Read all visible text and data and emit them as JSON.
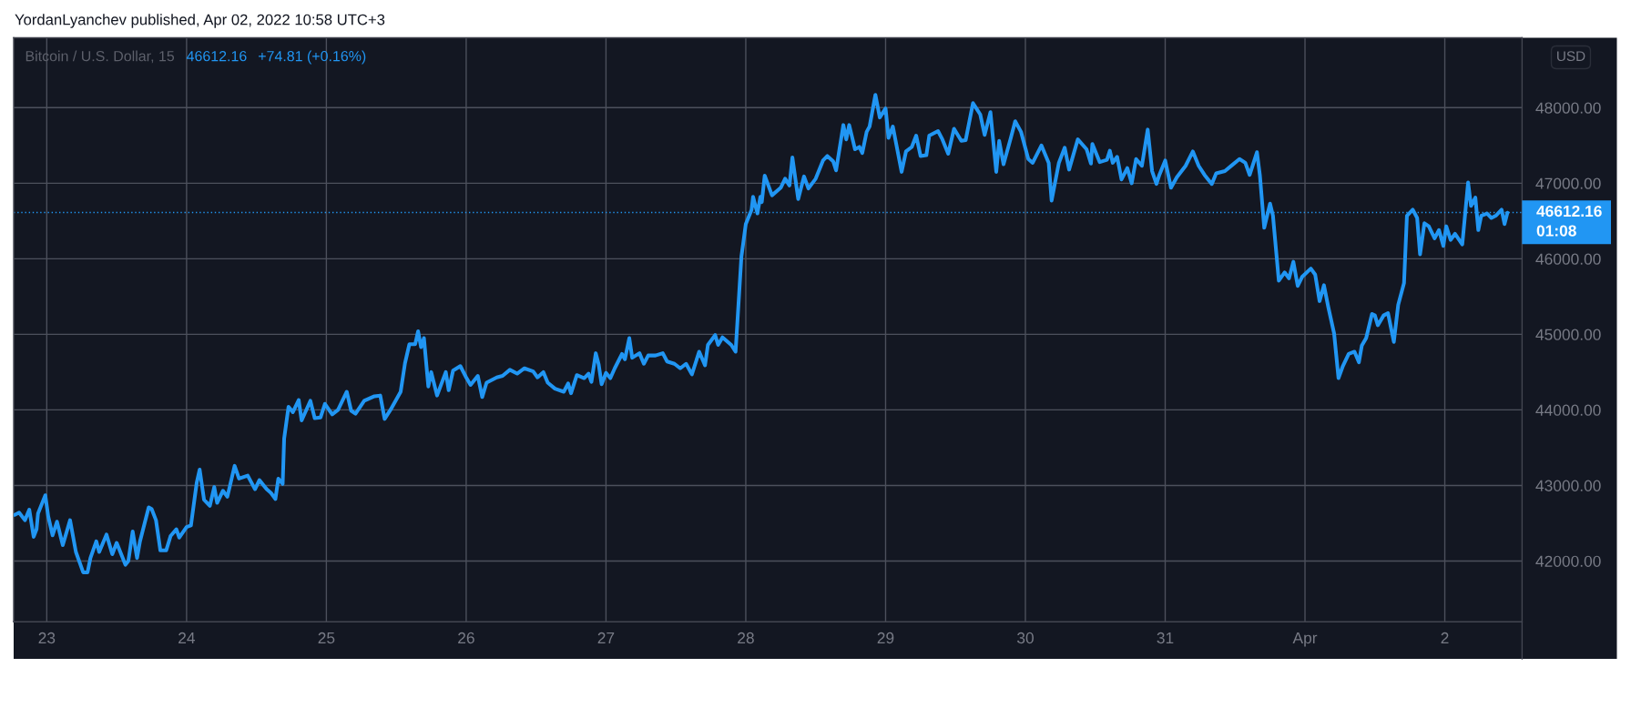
{
  "chart_data": {
    "type": "line",
    "title": "YordanLyanchev published, Apr 02, 2022 10:58 UTC+3",
    "subtitle": "Bitcoin / U.S. Dollar, 15",
    "annotations": [
      "46612.16",
      "+74.81 (+0.16%)",
      "01:08",
      "USD"
    ],
    "x": [
      "2022-03-22T18:30",
      "2022-03-22T19:15",
      "2022-03-22T20:15",
      "2022-03-22T21:00",
      "2022-03-22T21:45",
      "2022-03-22T22:15",
      "2022-03-22T22:30",
      "2022-03-22T23:45",
      "2022-03-23T00:15",
      "2022-03-23T01:00",
      "2022-03-23T01:45",
      "2022-03-23T02:45",
      "2022-03-23T04:00",
      "2022-03-23T05:00",
      "2022-03-23T06:15",
      "2022-03-23T07:00",
      "2022-03-23T07:30",
      "2022-03-23T08:30",
      "2022-03-23T09:00",
      "2022-03-23T10:15",
      "2022-03-23T11:15",
      "2022-03-23T12:00",
      "2022-03-23T13:30",
      "2022-03-23T14:00",
      "2022-03-23T14:45",
      "2022-03-23T15:30",
      "2022-03-23T16:00",
      "2022-03-23T17:30",
      "2022-03-23T18:00",
      "2022-03-23T18:45",
      "2022-03-23T19:30",
      "2022-03-23T20:30",
      "2022-03-23T21:15",
      "2022-03-23T22:15",
      "2022-03-23T22:45",
      "2022-03-24T00:00",
      "2022-03-24T00:45",
      "2022-03-24T01:45",
      "2022-03-24T02:15",
      "2022-03-24T03:00",
      "2022-03-24T04:00",
      "2022-03-24T04:45",
      "2022-03-24T05:15",
      "2022-03-24T06:15",
      "2022-03-24T07:00",
      "2022-03-24T08:15",
      "2022-03-24T09:00",
      "2022-03-24T10:30",
      "2022-03-24T11:45",
      "2022-03-24T12:30",
      "2022-03-24T13:45",
      "2022-03-24T14:30",
      "2022-03-24T15:15",
      "2022-03-24T15:45",
      "2022-03-24T16:30",
      "2022-03-24T16:45",
      "2022-03-24T17:30",
      "2022-03-24T18:15",
      "2022-03-24T19:15",
      "2022-03-24T19:45",
      "2022-03-24T21:15",
      "2022-03-24T22:00",
      "2022-03-24T23:00",
      "2022-03-24T23:45",
      "2022-03-25T01:00",
      "2022-03-25T02:00",
      "2022-03-25T03:30",
      "2022-03-25T04:15",
      "2022-03-25T05:00",
      "2022-03-25T06:30",
      "2022-03-25T08:15",
      "2022-03-25T09:15",
      "2022-03-25T10:00",
      "2022-03-25T11:00",
      "2022-03-25T12:15",
      "2022-03-25T12:45",
      "2022-03-25T13:30",
      "2022-03-25T14:15",
      "2022-03-25T15:15",
      "2022-03-25T15:45",
      "2022-03-25T16:15",
      "2022-03-25T16:45",
      "2022-03-25T17:30",
      "2022-03-25T18:00",
      "2022-03-25T19:00",
      "2022-03-25T20:30",
      "2022-03-25T21:00",
      "2022-03-25T21:45",
      "2022-03-25T23:00",
      "2022-03-26T00:00",
      "2022-03-26T00:45",
      "2022-03-26T02:00",
      "2022-03-26T02:45",
      "2022-03-26T03:30",
      "2022-03-26T05:15",
      "2022-03-26T06:15",
      "2022-03-26T07:30",
      "2022-03-26T08:45",
      "2022-03-26T10:00",
      "2022-03-26T11:30",
      "2022-03-26T12:15",
      "2022-03-26T13:15",
      "2022-03-26T14:00",
      "2022-03-26T15:15",
      "2022-03-26T16:45",
      "2022-03-26T17:30",
      "2022-03-26T18:00",
      "2022-03-26T19:00",
      "2022-03-26T20:15",
      "2022-03-26T21:00",
      "2022-03-26T21:30",
      "2022-03-26T22:15",
      "2022-03-26T22:45",
      "2022-03-26T23:15",
      "2022-03-27T00:00",
      "2022-03-27T00:45",
      "2022-03-27T01:30",
      "2022-03-27T02:45",
      "2022-03-27T03:15",
      "2022-03-27T04:00",
      "2022-03-27T04:30",
      "2022-03-27T05:45",
      "2022-03-27T06:30",
      "2022-03-27T07:15",
      "2022-03-27T08:30",
      "2022-03-27T09:45",
      "2022-03-27T10:30",
      "2022-03-27T11:45",
      "2022-03-27T12:45",
      "2022-03-27T13:45",
      "2022-03-27T14:45",
      "2022-03-27T16:00",
      "2022-03-27T17:00",
      "2022-03-27T17:30",
      "2022-03-27T18:45",
      "2022-03-27T19:15",
      "2022-03-27T20:00",
      "2022-03-27T21:30",
      "2022-03-27T22:15",
      "2022-03-27T23:15",
      "2022-03-27T23:30",
      "2022-03-28T00:00",
      "2022-03-28T01:00",
      "2022-03-28T01:15",
      "2022-03-28T02:00",
      "2022-03-28T02:30",
      "2022-03-28T02:45",
      "2022-03-28T03:15",
      "2022-03-28T04:30",
      "2022-03-28T06:00",
      "2022-03-28T06:45",
      "2022-03-28T07:30",
      "2022-03-28T08:00",
      "2022-03-28T09:00",
      "2022-03-28T10:00",
      "2022-03-28T10:45",
      "2022-03-28T12:00",
      "2022-03-28T13:15",
      "2022-03-28T14:00",
      "2022-03-28T15:00",
      "2022-03-28T15:30",
      "2022-03-28T16:45",
      "2022-03-28T17:15",
      "2022-03-28T17:45",
      "2022-03-28T18:45",
      "2022-03-28T19:30",
      "2022-03-28T20:00",
      "2022-03-28T20:45",
      "2022-03-28T21:15",
      "2022-03-28T22:15",
      "2022-03-28T23:00",
      "2022-03-29T00:00",
      "2022-03-29T00:30",
      "2022-03-29T01:15",
      "2022-03-29T02:45",
      "2022-03-29T03:30",
      "2022-03-29T04:30",
      "2022-03-29T05:15",
      "2022-03-29T06:00",
      "2022-03-29T07:00",
      "2022-03-29T07:30",
      "2022-03-29T09:00",
      "2022-03-29T09:45",
      "2022-03-29T10:45",
      "2022-03-29T11:45",
      "2022-03-29T13:00",
      "2022-03-29T13:45",
      "2022-03-29T15:00",
      "2022-03-29T16:15",
      "2022-03-29T17:00",
      "2022-03-29T18:00",
      "2022-03-29T19:00",
      "2022-03-29T19:30",
      "2022-03-29T20:15",
      "2022-03-29T21:30",
      "2022-03-29T22:15",
      "2022-03-29T23:15",
      "2022-03-30T00:30",
      "2022-03-30T01:15",
      "2022-03-30T02:45",
      "2022-03-30T04:00",
      "2022-03-30T04:30",
      "2022-03-30T05:45",
      "2022-03-30T06:45",
      "2022-03-30T07:30",
      "2022-03-30T09:00",
      "2022-03-30T10:30",
      "2022-03-30T11:15",
      "2022-03-30T11:30",
      "2022-03-30T12:45",
      "2022-03-30T14:00",
      "2022-03-30T14:30",
      "2022-03-30T15:00",
      "2022-03-30T15:45",
      "2022-03-30T16:30",
      "2022-03-30T17:30",
      "2022-03-30T18:15",
      "2022-03-30T19:00",
      "2022-03-30T20:00",
      "2022-03-30T21:00",
      "2022-03-30T21:45",
      "2022-03-30T22:30",
      "2022-03-30T23:00",
      "2022-03-31T00:00",
      "2022-03-31T01:00",
      "2022-03-31T02:00",
      "2022-03-31T03:30",
      "2022-03-31T04:45",
      "2022-03-31T05:45",
      "2022-03-31T06:45",
      "2022-03-31T08:00",
      "2022-03-31T08:45",
      "2022-03-31T10:15",
      "2022-03-31T11:30",
      "2022-03-31T12:45",
      "2022-03-31T13:45",
      "2022-03-31T14:30",
      "2022-03-31T15:45",
      "2022-03-31T16:15",
      "2022-03-31T17:00",
      "2022-03-31T18:00",
      "2022-03-31T18:30",
      "2022-03-31T19:30",
      "2022-03-31T20:30",
      "2022-03-31T21:15",
      "2022-03-31T22:00",
      "2022-03-31T22:45",
      "2022-03-31T23:30",
      "2022-04-01T01:00",
      "2022-04-01T01:45",
      "2022-04-01T02:30",
      "2022-04-01T03:15",
      "2022-04-01T04:00",
      "2022-04-01T05:00",
      "2022-04-01T05:45",
      "2022-04-01T06:30",
      "2022-04-01T07:30",
      "2022-04-01T08:30",
      "2022-04-01T09:15",
      "2022-04-01T09:45",
      "2022-04-01T10:30",
      "2022-04-01T11:30",
      "2022-04-01T12:00",
      "2022-04-01T12:30",
      "2022-04-01T13:30",
      "2022-04-01T14:15",
      "2022-04-01T15:15",
      "2022-04-01T16:00",
      "2022-04-01T17:00",
      "2022-04-01T17:30",
      "2022-04-01T18:30",
      "2022-04-01T19:15",
      "2022-04-01T19:45",
      "2022-04-01T20:30",
      "2022-04-01T21:15",
      "2022-04-01T22:15",
      "2022-04-01T23:00",
      "2022-04-01T23:45",
      "2022-04-02T00:15",
      "2022-04-02T01:00",
      "2022-04-02T01:45",
      "2022-04-02T03:00",
      "2022-04-02T03:30",
      "2022-04-02T04:00",
      "2022-04-02T04:30",
      "2022-04-02T05:15",
      "2022-04-02T05:45",
      "2022-04-02T06:15",
      "2022-04-02T07:15",
      "2022-04-02T08:00",
      "2022-04-02T08:45",
      "2022-04-02T09:45",
      "2022-04-02T10:15",
      "2022-04-02T10:45"
    ],
    "series": [
      {
        "color": "#2196f3",
        "values": [
          42610,
          42640,
          42540,
          42680,
          42320,
          42420,
          42630,
          42870,
          42590,
          42340,
          42520,
          42210,
          42540,
          42120,
          41850,
          41850,
          42040,
          42260,
          42120,
          42350,
          42090,
          42240,
          41950,
          42000,
          42390,
          42040,
          42260,
          42710,
          42690,
          42540,
          42140,
          42140,
          42330,
          42420,
          42310,
          42450,
          42470,
          43040,
          43210,
          42810,
          42730,
          42980,
          42770,
          42930,
          42850,
          43260,
          43090,
          43130,
          42950,
          43070,
          42950,
          42900,
          42820,
          43090,
          43020,
          43620,
          44040,
          43970,
          44130,
          43860,
          44120,
          43890,
          43900,
          44080,
          43940,
          44000,
          44240,
          43990,
          43950,
          44120,
          44180,
          44190,
          43880,
          44000,
          44170,
          44240,
          44620,
          44870,
          44870,
          45040,
          44830,
          44950,
          44310,
          44500,
          44190,
          44500,
          44260,
          44520,
          44580,
          44430,
          44330,
          44450,
          44170,
          44360,
          44430,
          44450,
          44530,
          44480,
          44550,
          44510,
          44430,
          44500,
          44360,
          44280,
          44240,
          44350,
          44220,
          44460,
          44420,
          44480,
          44370,
          44750,
          44600,
          44340,
          44490,
          44420,
          44550,
          44740,
          44670,
          44950,
          44690,
          44750,
          44610,
          44720,
          44720,
          44750,
          44640,
          44610,
          44550,
          44610,
          44470,
          44770,
          44590,
          44860,
          44990,
          44860,
          44960,
          44860,
          44770,
          46030,
          46170,
          46460,
          46650,
          46820,
          46600,
          46820,
          46750,
          47100,
          46840,
          46940,
          47060,
          46970,
          47340,
          46790,
          47090,
          46930,
          47060,
          47300,
          47360,
          47290,
          47170,
          47770,
          47580,
          47770,
          47450,
          47480,
          47400,
          47680,
          47750,
          48170,
          47870,
          47990,
          47600,
          47750,
          47150,
          47420,
          47480,
          47630,
          47360,
          47370,
          47630,
          47690,
          47580,
          47390,
          47720,
          47560,
          47570,
          48060,
          47910,
          47640,
          47940,
          47150,
          47560,
          47250,
          47600,
          47820,
          47680,
          47320,
          47270,
          47500,
          47270,
          46770,
          47270,
          47470,
          47180,
          47580,
          47450,
          47260,
          47520,
          47280,
          47310,
          47430,
          47270,
          47350,
          47050,
          47200,
          47000,
          47320,
          47230,
          47710,
          47160,
          46990,
          47110,
          47300,
          46940,
          47080,
          47230,
          47420,
          47230,
          47110,
          46990,
          47130,
          47160,
          47240,
          47320,
          47270,
          47110,
          47410,
          47110,
          46410,
          46730,
          46570,
          45710,
          45820,
          45740,
          45960,
          45640,
          45760,
          45870,
          45790,
          45440,
          45650,
          45360,
          45010,
          44420,
          44580,
          44740,
          44770,
          44630,
          44850,
          44950,
          45270,
          45250,
          45120,
          45250,
          45280,
          44900,
          45390,
          45680,
          46570,
          46650,
          46540,
          46060,
          46470,
          46430,
          46270,
          46380,
          46170,
          46430,
          46250,
          46330,
          46190,
          46600,
          47010,
          46700,
          46810,
          46380,
          46570,
          46600,
          46540,
          46570,
          46650,
          46460,
          46610
        ]
      }
    ],
    "xlim": [
      "2022-03-22T18:19",
      "2022-04-02T13:16"
    ],
    "ylim": [
      41195,
      48925
    ],
    "xticks": [
      {
        "value": "2022-03-23",
        "label": "23"
      },
      {
        "value": "2022-03-24",
        "label": "24"
      },
      {
        "value": "2022-03-25",
        "label": "25"
      },
      {
        "value": "2022-03-26",
        "label": "26"
      },
      {
        "value": "2022-03-27",
        "label": "27"
      },
      {
        "value": "2022-03-28",
        "label": "28"
      },
      {
        "value": "2022-03-29",
        "label": "29"
      },
      {
        "value": "2022-03-30",
        "label": "30"
      },
      {
        "value": "2022-03-31",
        "label": "31"
      },
      {
        "value": "2022-04-01",
        "label": "Apr"
      },
      {
        "value": "2022-04-02",
        "label": "2"
      }
    ],
    "yticks": [
      {
        "value": 42000,
        "label": "42000.00"
      },
      {
        "value": 43000,
        "label": "43000.00"
      },
      {
        "value": 44000,
        "label": "44000.00"
      },
      {
        "value": 45000,
        "label": "45000.00"
      },
      {
        "value": 46000,
        "label": "46000.00"
      },
      {
        "value": 47000,
        "label": "47000.00"
      },
      {
        "value": 48000,
        "label": "48000.00"
      }
    ],
    "grid": true,
    "ref_lines": [
      {
        "axis": "y",
        "value": 46612.16,
        "label": "46612.16",
        "color": "#2196f3",
        "line_style": "dotted"
      }
    ]
  }
}
